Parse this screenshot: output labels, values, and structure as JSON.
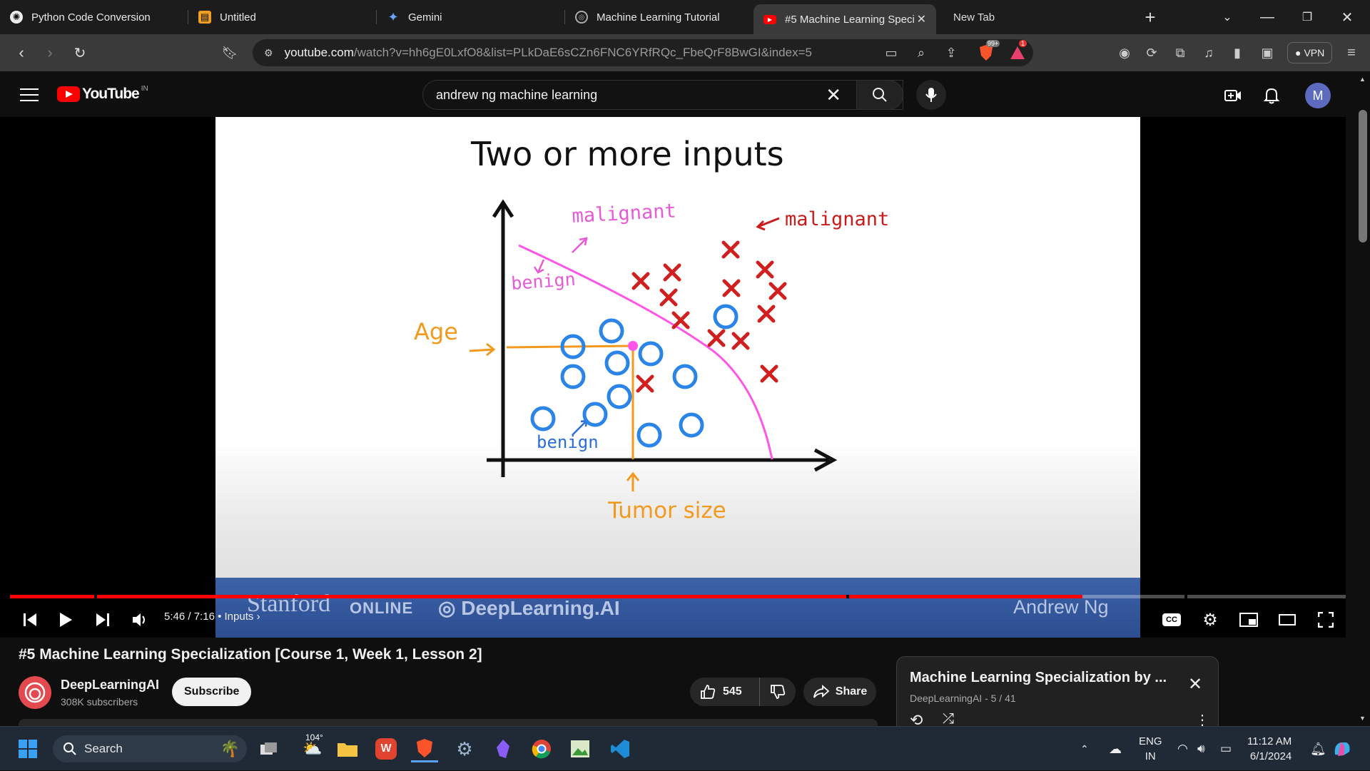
{
  "tabs": [
    {
      "title": "Python Code Conversion",
      "icon": "openai-icon"
    },
    {
      "title": "Untitled",
      "icon": "note-icon"
    },
    {
      "title": "Gemini",
      "icon": "gemini-icon"
    },
    {
      "title": "Machine Learning Tutorial",
      "icon": "globe-icon"
    },
    {
      "title": "#5 Machine Learning Speci",
      "icon": "youtube-icon",
      "active": true
    },
    {
      "title": "New Tab"
    }
  ],
  "address": {
    "url_host": "youtube.com",
    "url_rest": "/watch?v=hh6gE0LxfO8&list=PLkDaE6sCZn6FNC6YRfRQc_FbeQrF8BwGI&index=5"
  },
  "brave_badges": {
    "shields": "99+",
    "rewards": "1"
  },
  "vpn_label": "VPN",
  "youtube": {
    "logo_text": "YouTube",
    "region": "IN",
    "search_query": "andrew ng machine learning",
    "avatar_letter": "M"
  },
  "slide": {
    "title": "Two or more inputs",
    "annotation_malignant_top": "malignant",
    "annotation_malignant_right": "malignant",
    "annotation_benign_top": "benign",
    "annotation_benign_bottom": "benign",
    "y_label": "Age",
    "x_label": "Tumor size",
    "footer_stanford": "Stanford",
    "footer_online": "ONLINE",
    "footer_dlai": "DeepLearning.AI",
    "footer_author": "Andrew Ng"
  },
  "player": {
    "current_time": "5:46",
    "duration": "7:16",
    "chapter": "Inputs",
    "progress_fraction": 0.803
  },
  "video": {
    "title": "#5 Machine Learning Specialization [Course 1, Week 1, Lesson 2]",
    "channel": "DeepLearningAI",
    "subscribers": "308K subscribers",
    "subscribe_label": "Subscribe",
    "likes": "545",
    "share_label": "Share"
  },
  "playlist": {
    "title": "Machine Learning Specialization by ...",
    "subtitle": "DeepLearningAI - 5 / 41"
  },
  "taskbar": {
    "search_label": "Search",
    "weather": "104°",
    "lang_top": "ENG",
    "lang_bottom": "IN",
    "time": "11:12 AM",
    "date": "6/1/2024"
  }
}
